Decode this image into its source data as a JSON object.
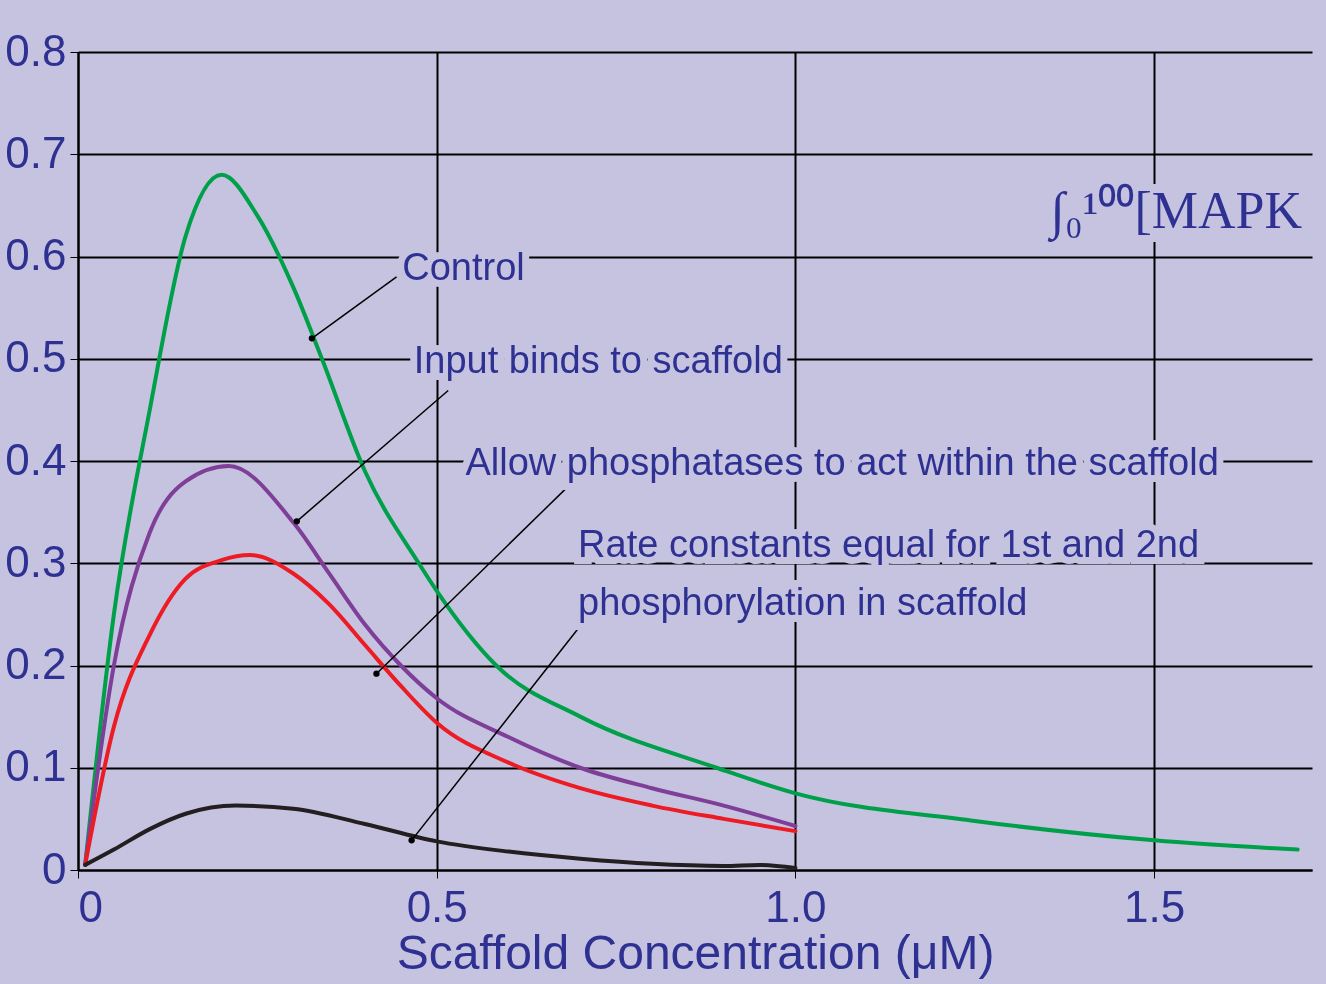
{
  "chart_data": {
    "type": "line",
    "xlabel": "Scaffold Concentration (μM)",
    "xlim": [
      0,
      1.72
    ],
    "ylim": [
      0,
      0.8
    ],
    "xticks": [
      0,
      0.5,
      {
        "value": 1,
        "label": "1.0"
      },
      1.5
    ],
    "yticks": [
      0,
      0.1,
      0.2,
      0.3,
      0.4,
      0.5,
      0.6,
      0.7,
      0.8
    ],
    "grid": true,
    "line_style": "solid",
    "series": [
      {
        "name": "Control",
        "color": "#00a04b",
        "x": [
          0.01,
          0.05,
          0.1,
          0.15,
          0.2,
          0.25,
          0.3,
          0.34,
          0.4,
          0.475,
          0.5,
          0.583,
          0.7,
          0.89,
          1.0,
          1.25,
          1.5,
          1.7
        ],
        "values": [
          0.005,
          0.25,
          0.45,
          0.62,
          0.68,
          0.64,
          0.57,
          0.5,
          0.39,
          0.3,
          0.273,
          0.2,
          0.15,
          0.1,
          0.075,
          0.048,
          0.029,
          0.02
        ]
      },
      {
        "name": "Input binds to scaffold",
        "color": "#7f3f98",
        "x": [
          0.01,
          0.05,
          0.1,
          0.15,
          0.21,
          0.3,
          0.35,
          0.4,
          0.45,
          0.5,
          0.6,
          0.7,
          0.8,
          0.9,
          1.0
        ],
        "values": [
          0.005,
          0.2,
          0.33,
          0.38,
          0.395,
          0.34,
          0.29,
          0.24,
          0.2,
          0.168,
          0.13,
          0.1,
          0.08,
          0.063,
          0.043
        ]
      },
      {
        "name": "Allow phosphatases to act within the scaffold",
        "color": "#ed1c24",
        "x": [
          0.01,
          0.05,
          0.1,
          0.15,
          0.2,
          0.24,
          0.3,
          0.35,
          0.4,
          0.45,
          0.5,
          0.6,
          0.7,
          0.8,
          0.9,
          1.0
        ],
        "values": [
          0.005,
          0.14,
          0.23,
          0.285,
          0.303,
          0.308,
          0.29,
          0.26,
          0.22,
          0.18,
          0.144,
          0.105,
          0.08,
          0.063,
          0.05,
          0.038
        ]
      },
      {
        "name": "Rate constants equal for 1st and 2nd\nphosphorylation in scaffold",
        "color": "#231f20",
        "x": [
          0.01,
          0.05,
          0.1,
          0.15,
          0.22,
          0.3,
          0.4,
          0.5,
          0.6,
          0.7,
          0.8,
          0.9,
          0.95,
          1.0
        ],
        "values": [
          0.005,
          0.02,
          0.04,
          0.055,
          0.063,
          0.06,
          0.045,
          0.028,
          0.018,
          0.011,
          0.006,
          0.004,
          0.005,
          0.002
        ]
      }
    ],
    "annotations": [
      "∫₀¹⁰⁰[MAPK"
    ]
  }
}
